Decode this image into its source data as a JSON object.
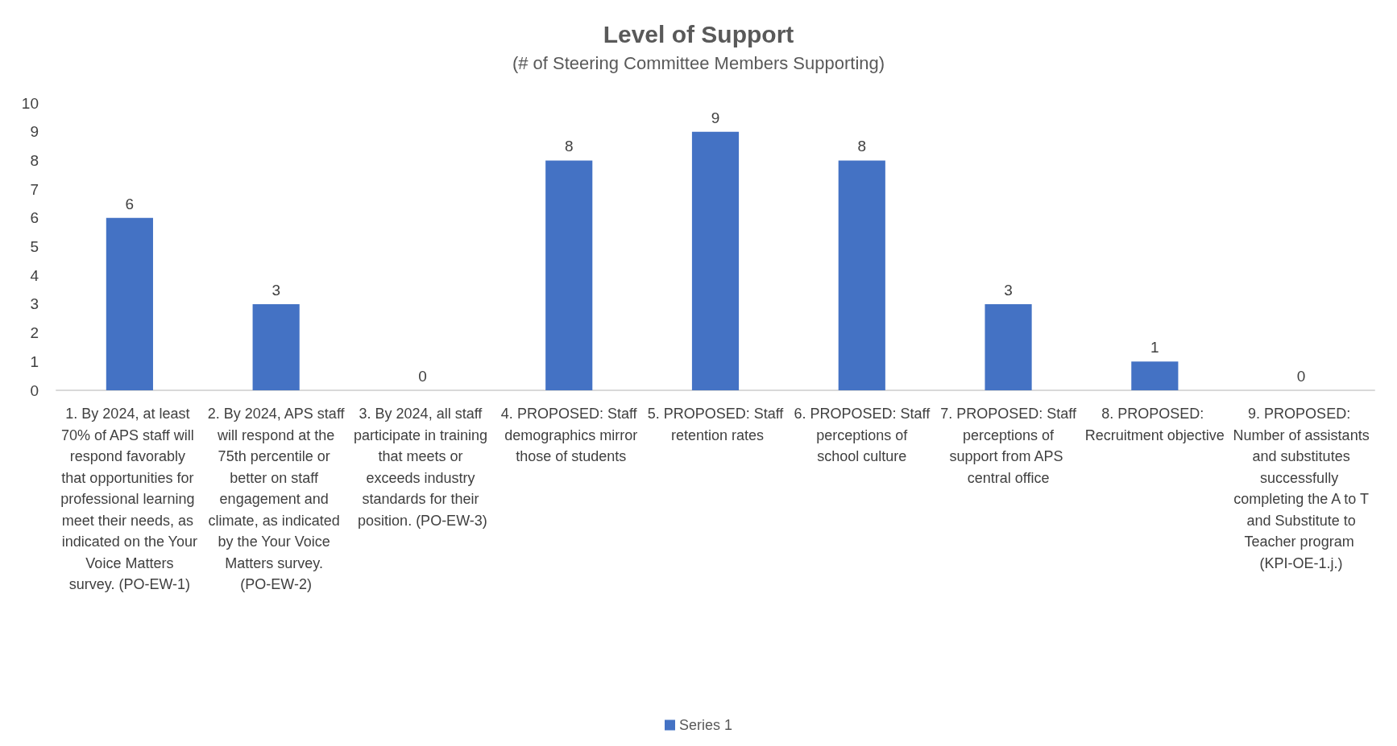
{
  "chart_data": {
    "type": "bar",
    "title": "Level of Support",
    "subtitle": "(# of Steering Committee Members Supporting)",
    "categories": [
      "1. By 2024, at least 70% of APS staff will respond favorably that opportunities for professional learning meet their needs, as indicated on the Your Voice Matters survey. (PO-EW-1)",
      "2. By 2024, APS staff will respond at the 75th percentile or better on staff engagement and climate, as indicated by the Your Voice Matters survey. (PO-EW-2)",
      "3. By 2024, all staff participate in training that meets or exceeds industry standards for their position. (PO-EW-3)",
      "4. PROPOSED: Staff demographics mirror those of students",
      "5. PROPOSED: Staff retention rates",
      "6. PROPOSED: Staff perceptions of school culture",
      "7. PROPOSED: Staff perceptions of support from APS central office",
      "8. PROPOSED: Recruitment objective",
      "9. PROPOSED: Number of assistants and substitutes successfully completing the A to T and Substitute to Teacher program (KPI-OE-1.j.)"
    ],
    "series": [
      {
        "name": "Series 1",
        "color": "#4472c4",
        "values": [
          6,
          3,
          0,
          8,
          9,
          8,
          3,
          1,
          0
        ]
      }
    ],
    "ylim": [
      0,
      10
    ],
    "yticks": [
      0,
      1,
      2,
      3,
      4,
      5,
      6,
      7,
      8,
      9,
      10
    ],
    "grid": false,
    "legend": "bottom",
    "data_labels": true
  }
}
